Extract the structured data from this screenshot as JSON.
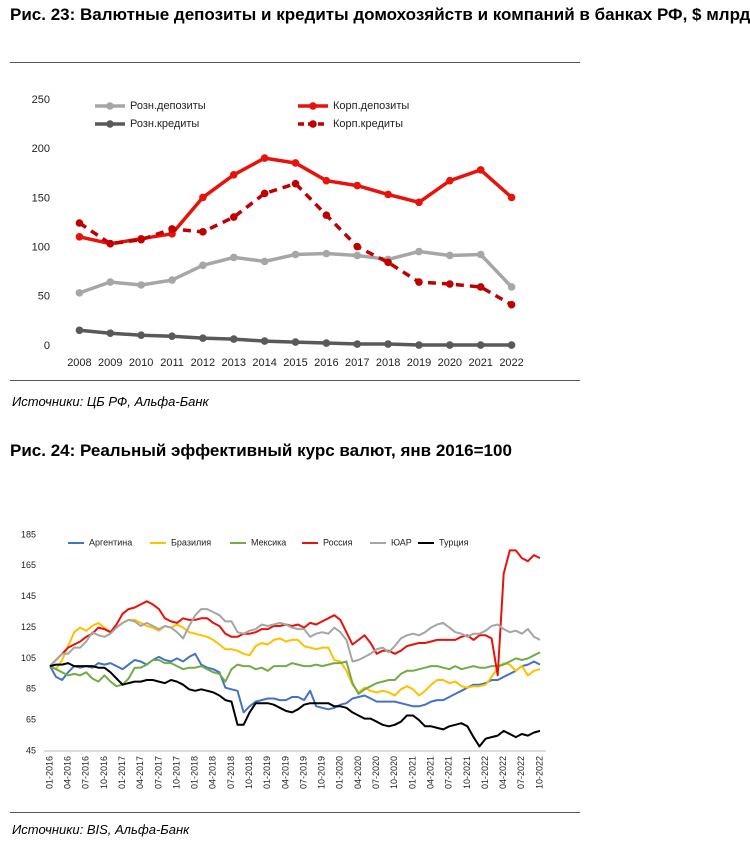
{
  "chart_data": [
    {
      "type": "line",
      "title": "Рис. 23: Валютные депозиты и кредиты домохозяйств и компаний в банках РФ, $ млрд",
      "source": "Источники: ЦБ РФ, Альфа-Банк",
      "categories": [
        "2008",
        "2009",
        "2010",
        "2011",
        "2012",
        "2013",
        "2014",
        "2015",
        "2016",
        "2017",
        "2018",
        "2019",
        "2020",
        "2021",
        "2022"
      ],
      "series": [
        {
          "name": "Розн.депозиты",
          "color": "#a6a6a6",
          "dashed": false,
          "values": [
            54,
            65,
            62,
            67,
            82,
            90,
            86,
            93,
            94,
            92,
            88,
            96,
            92,
            93,
            60
          ]
        },
        {
          "name": "Корп.депозиты",
          "color": "#e8120c",
          "dashed": false,
          "values": [
            111,
            104,
            109,
            114,
            151,
            174,
            191,
            186,
            168,
            163,
            154,
            146,
            168,
            179,
            151
          ]
        },
        {
          "name": "Розн.кредиты",
          "color": "#595959",
          "dashed": false,
          "values": [
            16,
            13,
            11,
            10,
            8,
            7,
            5,
            4,
            3,
            2,
            2,
            1,
            1,
            1,
            1
          ]
        },
        {
          "name": "Корп.кредиты",
          "color": "#c00000",
          "dashed": true,
          "values": [
            125,
            104,
            108,
            119,
            116,
            131,
            155,
            165,
            133,
            101,
            85,
            65,
            63,
            60,
            42
          ]
        }
      ],
      "ylim": [
        0,
        250
      ],
      "yticks": [
        0,
        50,
        100,
        150,
        200,
        250
      ],
      "grid": false,
      "markers": true,
      "legend": "top"
    },
    {
      "type": "line",
      "title": "Рис. 24: Реальный эффективный курс валют, янв 2016=100",
      "source": "Источники: BIS, Альфа-Банк",
      "categories": [
        "01-2016",
        null,
        null,
        "04-2016",
        null,
        null,
        "07-2016",
        null,
        null,
        "10-2016",
        null,
        null,
        "01-2017",
        null,
        null,
        "04-2017",
        null,
        null,
        "07-2017",
        null,
        null,
        "10-2017",
        null,
        null,
        "01-2018",
        null,
        null,
        "04-2018",
        null,
        null,
        "07-2018",
        null,
        null,
        "10-2018",
        null,
        null,
        "01-2019",
        null,
        null,
        "04-2019",
        null,
        null,
        "07-2019",
        null,
        null,
        "10-2019",
        null,
        null,
        "01-2020",
        null,
        null,
        "04-2020",
        null,
        null,
        "07-2020",
        null,
        null,
        "10-2020",
        null,
        null,
        "01-2021",
        null,
        null,
        "04-2021",
        null,
        null,
        "07-2021",
        null,
        null,
        "10-2021",
        null,
        null,
        "01-2022",
        null,
        null,
        "04-2022",
        null,
        null,
        "07-2022",
        null,
        null,
        "10-2022"
      ],
      "series": [
        {
          "name": "Аргентина",
          "color": "#4472c4",
          "dashed": false,
          "values": [
            100,
            93,
            91,
            96,
            100,
            99,
            100,
            99,
            102,
            101,
            102,
            100,
            98,
            101,
            104,
            103,
            101,
            104,
            106,
            104,
            103,
            105,
            103,
            106,
            108,
            101,
            99,
            98,
            96,
            86,
            85,
            84,
            70,
            74,
            77,
            78,
            79,
            79,
            78,
            78,
            80,
            80,
            78,
            84,
            74,
            73,
            72,
            73,
            75,
            76,
            79,
            80,
            81,
            79,
            77,
            77,
            77,
            77,
            76,
            75,
            74,
            74,
            75,
            77,
            78,
            78,
            80,
            82,
            84,
            86,
            88,
            88,
            89,
            91,
            91,
            93,
            95,
            97,
            100,
            101,
            103,
            101
          ]
        },
        {
          "name": "Бразилия",
          "color": "#ffc000",
          "dashed": false,
          "values": [
            100,
            98,
            104,
            113,
            122,
            125,
            123,
            126,
            128,
            125,
            122,
            125,
            128,
            130,
            130,
            128,
            126,
            125,
            123,
            126,
            125,
            127,
            125,
            122,
            121,
            120,
            119,
            117,
            114,
            111,
            111,
            110,
            108,
            107,
            113,
            115,
            114,
            117,
            118,
            116,
            117,
            117,
            113,
            112,
            111,
            112,
            112,
            104,
            103,
            97,
            88,
            83,
            86,
            84,
            83,
            84,
            83,
            81,
            85,
            87,
            85,
            81,
            84,
            88,
            91,
            91,
            89,
            90,
            87,
            86,
            87,
            87,
            88,
            93,
            99,
            102,
            101,
            97,
            100,
            94,
            97,
            98
          ]
        },
        {
          "name": "Мексика",
          "color": "#70ad47",
          "dashed": false,
          "values": [
            100,
            98,
            96,
            94,
            95,
            94,
            96,
            92,
            90,
            94,
            90,
            87,
            88,
            92,
            99,
            99,
            101,
            104,
            104,
            102,
            102,
            100,
            98,
            99,
            99,
            100,
            98,
            96,
            95,
            90,
            98,
            101,
            100,
            100,
            98,
            99,
            97,
            100,
            100,
            100,
            102,
            101,
            100,
            100,
            101,
            100,
            101,
            102,
            102,
            103,
            89,
            82,
            85,
            87,
            89,
            90,
            91,
            91,
            95,
            97,
            97,
            98,
            99,
            100,
            100,
            99,
            98,
            100,
            98,
            99,
            100,
            99,
            99,
            100,
            100,
            101,
            103,
            105,
            104,
            105,
            107,
            109
          ]
        },
        {
          "name": "Россия",
          "color": "#e8120c",
          "dashed": false,
          "values": [
            100,
            104,
            108,
            112,
            114,
            116,
            119,
            121,
            125,
            124,
            122,
            127,
            134,
            137,
            138,
            140,
            142,
            140,
            137,
            131,
            129,
            128,
            131,
            130,
            130,
            131,
            131,
            128,
            126,
            121,
            119,
            119,
            121,
            121,
            122,
            124,
            124,
            126,
            126,
            127,
            126,
            127,
            125,
            128,
            127,
            129,
            131,
            133,
            130,
            122,
            114,
            117,
            120,
            115,
            108,
            110,
            110,
            108,
            110,
            113,
            114,
            115,
            115,
            116,
            117,
            117,
            117,
            117,
            119,
            120,
            117,
            120,
            120,
            118,
            94,
            160,
            175,
            175,
            170,
            168,
            172,
            170
          ]
        },
        {
          "name": "ЮАР",
          "color": "#a5a5a5",
          "dashed": false,
          "values": [
            100,
            104,
            108,
            108,
            112,
            112,
            116,
            122,
            120,
            119,
            121,
            125,
            128,
            130,
            129,
            126,
            128,
            126,
            124,
            126,
            125,
            122,
            118,
            126,
            133,
            137,
            137,
            135,
            133,
            129,
            129,
            122,
            121,
            123,
            124,
            127,
            126,
            127,
            128,
            127,
            125,
            124,
            124,
            119,
            121,
            122,
            121,
            125,
            122,
            117,
            103,
            104,
            106,
            108,
            111,
            112,
            109,
            113,
            118,
            120,
            121,
            120,
            122,
            125,
            127,
            128,
            125,
            122,
            121,
            119,
            121,
            121,
            123,
            126,
            127,
            124,
            122,
            123,
            121,
            124,
            119,
            117
          ]
        },
        {
          "name": "Турция",
          "color": "#000000",
          "dashed": false,
          "values": [
            100,
            101,
            101,
            102,
            100,
            100,
            100,
            100,
            99,
            99,
            96,
            92,
            88,
            89,
            90,
            90,
            91,
            91,
            90,
            89,
            91,
            90,
            88,
            85,
            84,
            85,
            84,
            83,
            81,
            78,
            77,
            62,
            62,
            70,
            76,
            76,
            76,
            75,
            73,
            71,
            70,
            72,
            75,
            76,
            76,
            76,
            76,
            74,
            74,
            73,
            70,
            68,
            66,
            66,
            64,
            62,
            61,
            62,
            64,
            68,
            68,
            65,
            61,
            61,
            60,
            59,
            61,
            62,
            63,
            61,
            54,
            48,
            53,
            54,
            55,
            58,
            56,
            54,
            56,
            55,
            57,
            58
          ]
        }
      ],
      "ylim": [
        45,
        185
      ],
      "yticks": [
        45,
        65,
        85,
        105,
        125,
        145,
        165,
        185
      ],
      "grid": false,
      "markers": false,
      "legend": "top"
    }
  ]
}
